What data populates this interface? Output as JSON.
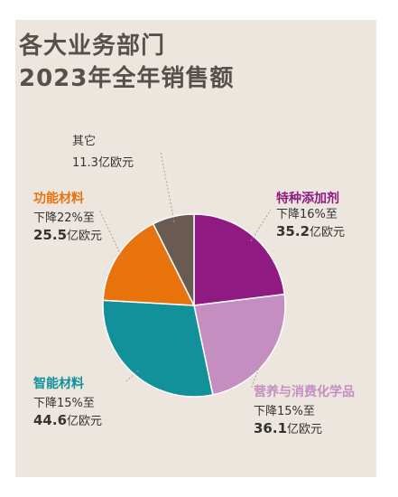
{
  "chart_data": {
    "type": "pie",
    "title": [
      "各大业务部门",
      "2023年全年销售额"
    ],
    "unit": "亿欧元",
    "slices": [
      {
        "name": "特种添加剂",
        "value": 35.2,
        "change": "下降16%至",
        "color": "#8e1a82"
      },
      {
        "name": "营养与消费化学品",
        "value": 36.1,
        "change": "下降15%至",
        "color": "#c48fc0"
      },
      {
        "name": "智能材料",
        "value": 44.6,
        "change": "下降15%至",
        "color": "#12919a"
      },
      {
        "name": "功能材料",
        "value": 25.5,
        "change": "下降22%至",
        "color": "#e8720c"
      },
      {
        "name": "其它",
        "value": 11.3,
        "change": "",
        "color": "#6b5a52"
      }
    ]
  }
}
